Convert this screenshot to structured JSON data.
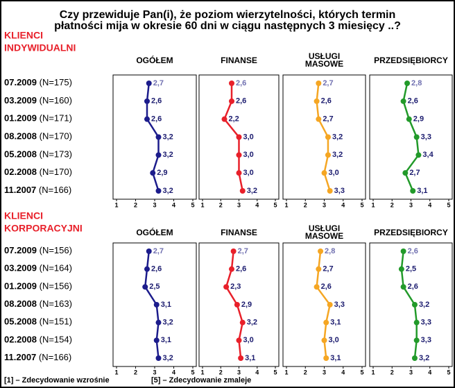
{
  "title": [
    "Czy przewiduje Pan(i), że poziom wierzytelności, których termin",
    "płatności mija w okresie 60 dni w ciągu następnych 3 miesięcy ..?"
  ],
  "note": [
    "[1] – Zdecydowanie wzrośnie",
    "[5] – Zdecydowanie zmaleje"
  ],
  "sections": [
    {
      "label": [
        "KLIENCI",
        "INDYWIDUALNI"
      ],
      "categories": [
        "07.2009",
        "03.2009",
        "01.2009",
        "08.2008",
        "05.2008",
        "02.2008",
        "11.2007"
      ],
      "n_labels": [
        "(N=175)",
        "(N=160)",
        "(N=171)",
        "(N=170)",
        "(N=173)",
        "(N=170)",
        "(N=166)"
      ],
      "chart_data": [
        {
          "type": "line",
          "title": [
            "OGÓŁEM"
          ],
          "color": "#1c1c8c",
          "values": [
            2.7,
            2.6,
            2.6,
            3.2,
            3.2,
            2.9,
            3.2
          ],
          "value_labels": [
            "2,7",
            "2,6",
            "2,6",
            "3,2",
            "3,2",
            "2,9",
            "3,2"
          ],
          "xlim": [
            1,
            5
          ],
          "xticks": [
            1,
            2,
            3,
            4,
            5
          ]
        },
        {
          "type": "line",
          "title": [
            "FINANSE"
          ],
          "color": "#e8202a",
          "values": [
            2.6,
            2.6,
            2.2,
            3.0,
            3.0,
            3.0,
            3.2
          ],
          "value_labels": [
            "2,6",
            "2,6",
            "2,2",
            "3,0",
            "3,0",
            "3,0",
            "3,2"
          ],
          "xlim": [
            1,
            5
          ],
          "xticks": [
            1,
            2,
            3,
            4,
            5
          ]
        },
        {
          "type": "line",
          "title": [
            "USŁUGI",
            "MASOWE"
          ],
          "color": "#f5a623",
          "values": [
            2.7,
            2.6,
            2.7,
            3.2,
            3.2,
            3.0,
            3.3
          ],
          "value_labels": [
            "2,7",
            "2,6",
            "2,7",
            "3,2",
            "3,2",
            "3,0",
            "3,3"
          ],
          "xlim": [
            1,
            5
          ],
          "xticks": [
            1,
            2,
            3,
            4,
            5
          ]
        },
        {
          "type": "line",
          "title": [
            "PRZEDSIĘBIORCY"
          ],
          "color": "#229a2a",
          "values": [
            2.8,
            2.6,
            2.9,
            3.3,
            3.4,
            2.7,
            3.1
          ],
          "value_labels": [
            "2,8",
            "2,6",
            "2,9",
            "3,3",
            "3,4",
            "2,7",
            "3,1"
          ],
          "xlim": [
            1,
            5
          ],
          "xticks": [
            1,
            2,
            3,
            4,
            5
          ]
        }
      ]
    },
    {
      "label": [
        "KLIENCI",
        "KORPORACYJNI"
      ],
      "categories": [
        "07.2009",
        "03.2009",
        "01.2009",
        "08.2008",
        "05.2008",
        "02.2008",
        "11.2007"
      ],
      "n_labels": [
        "(N=156)",
        "(N=164)",
        "(N=156)",
        "(N=163)",
        "(N=151)",
        "(N=154)",
        "(N=166)"
      ],
      "chart_data": [
        {
          "type": "line",
          "title": [
            "OGÓŁEM"
          ],
          "color": "#1c1c8c",
          "values": [
            2.7,
            2.6,
            2.5,
            3.1,
            3.2,
            3.1,
            3.2
          ],
          "value_labels": [
            "2,7",
            "2,6",
            "2,5",
            "3,1",
            "3,2",
            "3,1",
            "3,2"
          ],
          "xlim": [
            1,
            5
          ],
          "xticks": [
            1,
            2,
            3,
            4,
            5
          ]
        },
        {
          "type": "line",
          "title": [
            "FINANSE"
          ],
          "color": "#e8202a",
          "values": [
            2.7,
            2.6,
            2.3,
            2.9,
            3.2,
            3.0,
            3.1
          ],
          "value_labels": [
            "2,7",
            "2,6",
            "2,3",
            "2,9",
            "3,2",
            "3,0",
            "3,1"
          ],
          "xlim": [
            1,
            5
          ],
          "xticks": [
            1,
            2,
            3,
            4,
            5
          ]
        },
        {
          "type": "line",
          "title": [
            "USŁUGI",
            "MASOWE"
          ],
          "color": "#f5a623",
          "values": [
            2.8,
            2.7,
            2.6,
            3.3,
            3.1,
            3.0,
            3.1
          ],
          "value_labels": [
            "2,8",
            "2,7",
            "2,6",
            "3,3",
            "3,1",
            "3,0",
            "3,1"
          ],
          "xlim": [
            1,
            5
          ],
          "xticks": [
            1,
            2,
            3,
            4,
            5
          ]
        },
        {
          "type": "line",
          "title": [
            "PRZEDSIĘBIORCY"
          ],
          "color": "#229a2a",
          "values": [
            2.6,
            2.5,
            2.6,
            3.2,
            3.3,
            3.3,
            3.2
          ],
          "value_labels": [
            "2,6",
            "2,5",
            "2,6",
            "3,2",
            "3,3",
            "3,3",
            "3,2"
          ],
          "xlim": [
            1,
            5
          ],
          "xticks": [
            1,
            2,
            3,
            4,
            5
          ]
        }
      ]
    }
  ]
}
